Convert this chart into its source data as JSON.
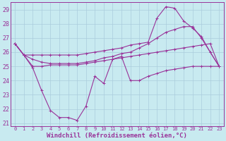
{
  "xlabel": "Windchill (Refroidissement éolien,°C)",
  "x": [
    0,
    1,
    2,
    3,
    4,
    5,
    6,
    7,
    8,
    9,
    10,
    11,
    12,
    13,
    14,
    15,
    16,
    17,
    18,
    19,
    20,
    21,
    22,
    23
  ],
  "line1": [
    26.6,
    25.8,
    25.8,
    25.8,
    25.8,
    25.8,
    25.8,
    25.8,
    25.9,
    26.0,
    26.1,
    26.2,
    26.3,
    26.5,
    26.6,
    26.7,
    28.4,
    29.2,
    29.1,
    28.2,
    27.7,
    27.1,
    26.0,
    25.0
  ],
  "line2": [
    26.6,
    25.8,
    25.5,
    25.3,
    25.2,
    25.2,
    25.2,
    25.2,
    25.3,
    25.4,
    25.6,
    25.7,
    25.9,
    26.0,
    26.3,
    26.6,
    27.0,
    27.4,
    27.6,
    27.8,
    27.8,
    27.0,
    26.0,
    25.0
  ],
  "line3": [
    26.6,
    25.8,
    25.0,
    25.0,
    25.1,
    25.1,
    25.1,
    25.1,
    25.2,
    25.3,
    25.4,
    25.5,
    25.6,
    25.7,
    25.8,
    25.9,
    26.0,
    26.1,
    26.2,
    26.3,
    26.4,
    26.5,
    26.6,
    25.0
  ],
  "line4": [
    26.6,
    25.8,
    24.9,
    23.3,
    21.9,
    21.4,
    21.4,
    21.2,
    22.2,
    24.3,
    23.8,
    25.5,
    25.7,
    24.0,
    24.0,
    24.3,
    24.5,
    24.7,
    24.8,
    24.9,
    25.0,
    25.0,
    25.0,
    25.0
  ],
  "line_color": "#993399",
  "bg_color": "#c8eaf0",
  "grid_color": "#aaccdd",
  "ylim": [
    20.8,
    29.5
  ],
  "yticks": [
    21,
    22,
    23,
    24,
    25,
    26,
    27,
    28,
    29
  ],
  "xlim": [
    -0.5,
    23.5
  ]
}
